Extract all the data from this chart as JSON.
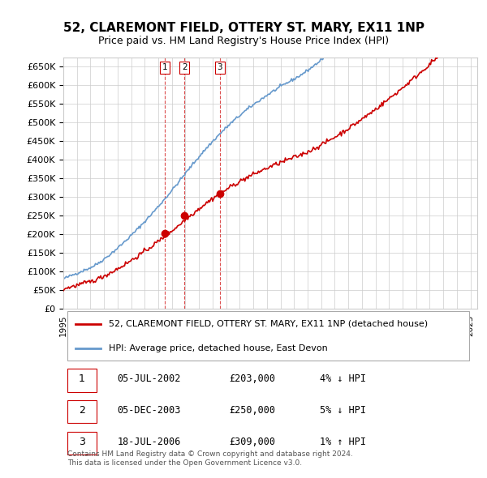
{
  "title": "52, CLAREMONT FIELD, OTTERY ST. MARY, EX11 1NP",
  "subtitle": "Price paid vs. HM Land Registry's House Price Index (HPI)",
  "ylabel_ticks": [
    "£0",
    "£50K",
    "£100K",
    "£150K",
    "£200K",
    "£250K",
    "£300K",
    "£350K",
    "£400K",
    "£450K",
    "£500K",
    "£550K",
    "£600K",
    "£650K"
  ],
  "ylim": [
    0,
    675000
  ],
  "yticks": [
    0,
    50000,
    100000,
    150000,
    200000,
    250000,
    300000,
    350000,
    400000,
    450000,
    500000,
    550000,
    600000,
    650000
  ],
  "sale_dates": [
    2002.5,
    2003.92,
    2006.54
  ],
  "sale_prices": [
    203000,
    250000,
    309000
  ],
  "sale_labels": [
    "1",
    "2",
    "3"
  ],
  "background_color": "#ffffff",
  "grid_color": "#cccccc",
  "hpi_color": "#6699cc",
  "price_paid_color": "#cc0000",
  "sale_marker_color": "#cc0000",
  "vline_color": "#cc0000",
  "legend_label_price": "52, CLAREMONT FIELD, OTTERY ST. MARY, EX11 1NP (detached house)",
  "legend_label_hpi": "HPI: Average price, detached house, East Devon",
  "table_entries": [
    {
      "num": "1",
      "date": "05-JUL-2002",
      "price": "£203,000",
      "hpi": "4% ↓ HPI"
    },
    {
      "num": "2",
      "date": "05-DEC-2003",
      "price": "£250,000",
      "hpi": "5% ↓ HPI"
    },
    {
      "num": "3",
      "date": "18-JUL-2006",
      "price": "£309,000",
      "hpi": "1% ↑ HPI"
    }
  ],
  "copyright_text": "Contains HM Land Registry data © Crown copyright and database right 2024.\nThis data is licensed under the Open Government Licence v3.0.",
  "xlim_start": 1995.0,
  "xlim_end": 2025.5
}
